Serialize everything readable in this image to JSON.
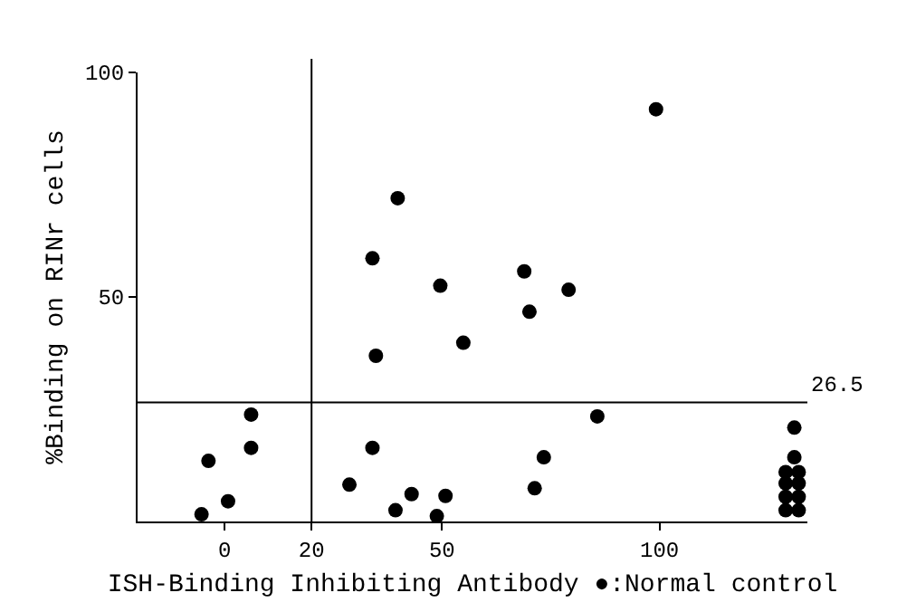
{
  "chart_data": {
    "type": "scatter",
    "xlabel": "ISH-Binding Inhibiting Antibody ●:Normal control",
    "ylabel": "%Binding on RINr cells",
    "xlim": [
      -20,
      134
    ],
    "ylim": [
      0,
      100
    ],
    "xticks": [
      0,
      20,
      50,
      100
    ],
    "yticks": [
      50,
      100
    ],
    "marker": "circle",
    "series": [
      {
        "color": "#000000",
        "x": [
          -5.3,
          -3.7,
          0.8,
          6.1,
          6.1,
          28.7,
          34,
          34.8,
          34,
          39.8,
          39.3,
          43,
          49.6,
          50.8,
          48.8,
          54.9,
          99.2,
          68.9,
          70.1,
          79.1,
          85.7,
          73.4,
          71.3
        ],
        "values": [
          1.6,
          13.5,
          4.5,
          23.8,
          16.4,
          8.2,
          58.6,
          36.9,
          16.4,
          72,
          2.5,
          6.1,
          52.5,
          5.7,
          1.2,
          39.8,
          91.8,
          55.7,
          46.7,
          51.6,
          23.4,
          14.3,
          7.4
        ]
      },
      {
        "color": "#000000",
        "x": [
          131,
          131,
          129,
          132,
          129,
          132,
          129,
          132,
          129,
          132
        ],
        "values": [
          20.9,
          14.3,
          11,
          11,
          8.5,
          8.5,
          5.5,
          5.5,
          2.5,
          2.5
        ]
      }
    ],
    "ref_lines": [
      {
        "axis": "x",
        "value": 20,
        "label": null
      },
      {
        "axis": "y",
        "value": 26.5,
        "label": "26.5"
      }
    ]
  }
}
